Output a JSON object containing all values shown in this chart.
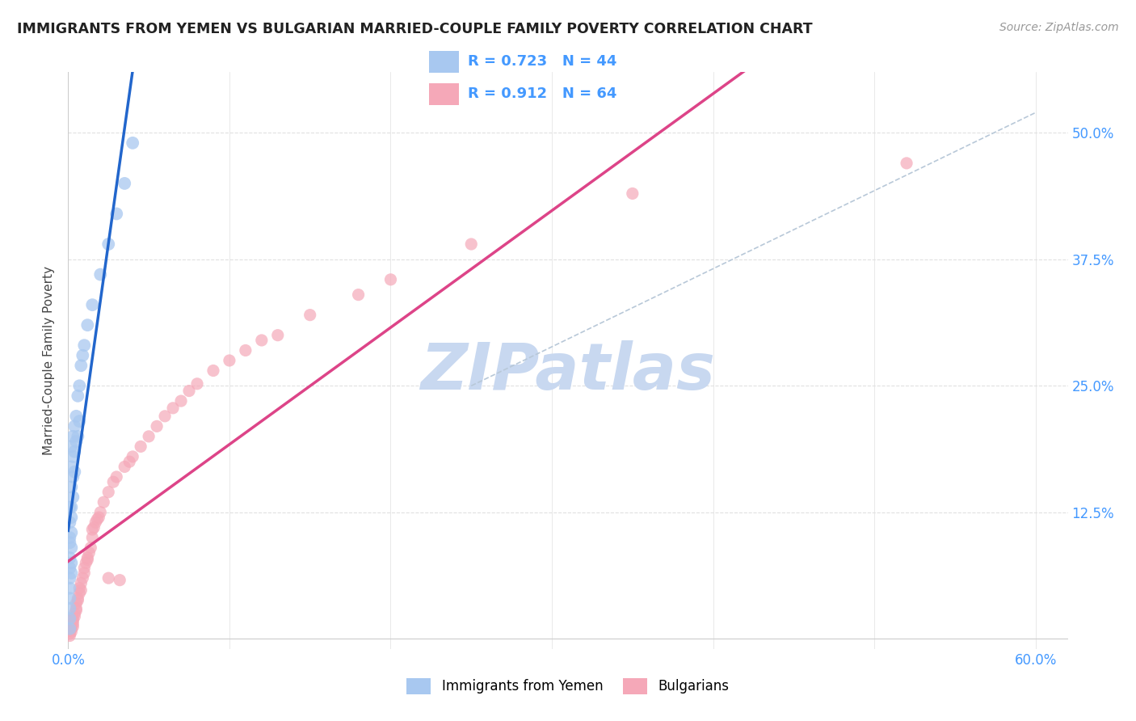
{
  "title": "IMMIGRANTS FROM YEMEN VS BULGARIAN MARRIED-COUPLE FAMILY POVERTY CORRELATION CHART",
  "source": "Source: ZipAtlas.com",
  "ylabel": "Married-Couple Family Poverty",
  "xlim": [
    0.0,
    0.62
  ],
  "ylim": [
    -0.01,
    0.56
  ],
  "xticks": [
    0.0,
    0.1,
    0.2,
    0.3,
    0.4,
    0.5,
    0.6
  ],
  "xticklabels": [
    "0.0%",
    "",
    "",
    "",
    "",
    "",
    "60.0%"
  ],
  "ytick_positions": [
    0.0,
    0.125,
    0.25,
    0.375,
    0.5
  ],
  "ytick_labels": [
    "",
    "12.5%",
    "25.0%",
    "37.5%",
    "50.0%"
  ],
  "background_color": "#ffffff",
  "grid_color": "#e0e0e0",
  "watermark": "ZIPatlas",
  "watermark_color": "#c8d8f0",
  "tick_label_color": "#4499ff",
  "yemen_color": "#a8c8f0",
  "bulgaria_color": "#f5a8b8",
  "yemen_R": 0.723,
  "yemen_N": 44,
  "bulgaria_R": 0.912,
  "bulgaria_N": 64,
  "yemen_trend_color": "#2266cc",
  "bulgaria_trend_color": "#dd4488",
  "reference_line_color": "#b8c8d8",
  "yemen_scatter": [
    [
      0.001,
      0.1
    ],
    [
      0.001,
      0.13
    ],
    [
      0.001,
      0.115
    ],
    [
      0.001,
      0.095
    ],
    [
      0.001,
      0.08
    ],
    [
      0.001,
      0.07
    ],
    [
      0.001,
      0.06
    ],
    [
      0.001,
      0.05
    ],
    [
      0.001,
      0.04
    ],
    [
      0.001,
      0.03
    ],
    [
      0.001,
      0.02
    ],
    [
      0.001,
      0.01
    ],
    [
      0.002,
      0.19
    ],
    [
      0.002,
      0.17
    ],
    [
      0.002,
      0.15
    ],
    [
      0.002,
      0.13
    ],
    [
      0.002,
      0.12
    ],
    [
      0.002,
      0.105
    ],
    [
      0.002,
      0.09
    ],
    [
      0.002,
      0.075
    ],
    [
      0.002,
      0.065
    ],
    [
      0.003,
      0.2
    ],
    [
      0.003,
      0.18
    ],
    [
      0.003,
      0.16
    ],
    [
      0.003,
      0.14
    ],
    [
      0.004,
      0.21
    ],
    [
      0.004,
      0.185
    ],
    [
      0.004,
      0.165
    ],
    [
      0.005,
      0.22
    ],
    [
      0.005,
      0.195
    ],
    [
      0.006,
      0.24
    ],
    [
      0.006,
      0.2
    ],
    [
      0.007,
      0.25
    ],
    [
      0.007,
      0.215
    ],
    [
      0.008,
      0.27
    ],
    [
      0.009,
      0.28
    ],
    [
      0.01,
      0.29
    ],
    [
      0.012,
      0.31
    ],
    [
      0.015,
      0.33
    ],
    [
      0.02,
      0.36
    ],
    [
      0.025,
      0.39
    ],
    [
      0.03,
      0.42
    ],
    [
      0.035,
      0.45
    ],
    [
      0.04,
      0.49
    ]
  ],
  "bulgaria_scatter": [
    [
      0.001,
      0.005
    ],
    [
      0.001,
      0.008
    ],
    [
      0.001,
      0.003
    ],
    [
      0.002,
      0.012
    ],
    [
      0.002,
      0.01
    ],
    [
      0.002,
      0.007
    ],
    [
      0.003,
      0.018
    ],
    [
      0.003,
      0.015
    ],
    [
      0.003,
      0.012
    ],
    [
      0.003,
      0.02
    ],
    [
      0.004,
      0.025
    ],
    [
      0.004,
      0.022
    ],
    [
      0.005,
      0.03
    ],
    [
      0.005,
      0.035
    ],
    [
      0.005,
      0.028
    ],
    [
      0.006,
      0.04
    ],
    [
      0.006,
      0.038
    ],
    [
      0.007,
      0.045
    ],
    [
      0.007,
      0.05
    ],
    [
      0.008,
      0.055
    ],
    [
      0.008,
      0.048
    ],
    [
      0.009,
      0.06
    ],
    [
      0.01,
      0.065
    ],
    [
      0.01,
      0.07
    ],
    [
      0.011,
      0.075
    ],
    [
      0.012,
      0.08
    ],
    [
      0.012,
      0.078
    ],
    [
      0.013,
      0.085
    ],
    [
      0.014,
      0.09
    ],
    [
      0.015,
      0.1
    ],
    [
      0.015,
      0.108
    ],
    [
      0.016,
      0.11
    ],
    [
      0.017,
      0.115
    ],
    [
      0.018,
      0.118
    ],
    [
      0.019,
      0.12
    ],
    [
      0.02,
      0.125
    ],
    [
      0.022,
      0.135
    ],
    [
      0.025,
      0.145
    ],
    [
      0.025,
      0.06
    ],
    [
      0.028,
      0.155
    ],
    [
      0.03,
      0.16
    ],
    [
      0.032,
      0.058
    ],
    [
      0.035,
      0.17
    ],
    [
      0.038,
      0.175
    ],
    [
      0.04,
      0.18
    ],
    [
      0.045,
      0.19
    ],
    [
      0.05,
      0.2
    ],
    [
      0.055,
      0.21
    ],
    [
      0.06,
      0.22
    ],
    [
      0.065,
      0.228
    ],
    [
      0.07,
      0.235
    ],
    [
      0.075,
      0.245
    ],
    [
      0.08,
      0.252
    ],
    [
      0.09,
      0.265
    ],
    [
      0.1,
      0.275
    ],
    [
      0.11,
      0.285
    ],
    [
      0.12,
      0.295
    ],
    [
      0.13,
      0.3
    ],
    [
      0.15,
      0.32
    ],
    [
      0.18,
      0.34
    ],
    [
      0.2,
      0.355
    ],
    [
      0.25,
      0.39
    ],
    [
      0.35,
      0.44
    ],
    [
      0.52,
      0.47
    ]
  ]
}
